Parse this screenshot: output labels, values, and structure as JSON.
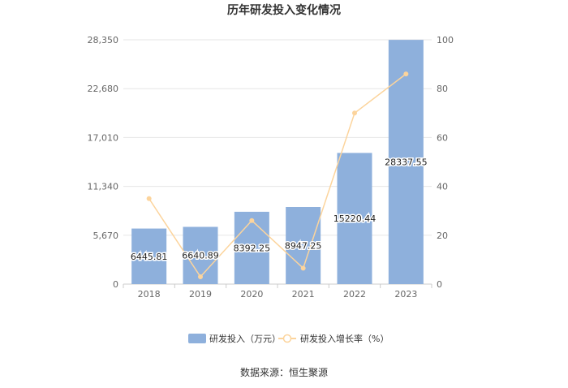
{
  "chart_data": {
    "type": "bar",
    "title": "历年研发投入变化情况",
    "categories": [
      "2018",
      "2019",
      "2020",
      "2021",
      "2022",
      "2023"
    ],
    "series": [
      {
        "name": "研发投入（万元）",
        "type": "bar",
        "axis": "left",
        "values": [
          6445.81,
          6640.89,
          8392.25,
          8947.25,
          15220.44,
          28337.55
        ],
        "labels": [
          "6445.81",
          "6640.89",
          "8392.25",
          "8947.25",
          "15220.44",
          "28337.55"
        ]
      },
      {
        "name": "研发投入增长率（%）",
        "type": "line",
        "axis": "right",
        "values": [
          35,
          3,
          26,
          6.5,
          70,
          86
        ]
      }
    ],
    "y_left": {
      "ylim": [
        0,
        28350
      ],
      "ticks": [
        "0",
        "5,670",
        "11,340",
        "17,010",
        "22,680",
        "28,350"
      ],
      "tick_values": [
        0,
        5670,
        11340,
        17010,
        22680,
        28350
      ]
    },
    "y_right": {
      "ylim": [
        0,
        100
      ],
      "ticks": [
        "0",
        "20",
        "40",
        "60",
        "80",
        "100"
      ],
      "tick_values": [
        0,
        20,
        40,
        60,
        80,
        100
      ]
    },
    "grid": true,
    "legend_position": "bottom",
    "colors": {
      "bar": "#8eb0dc",
      "line": "#fcd49c",
      "grid": "#e6e6e6",
      "axis": "#cccccc"
    },
    "source": "数据来源：恒生聚源"
  }
}
